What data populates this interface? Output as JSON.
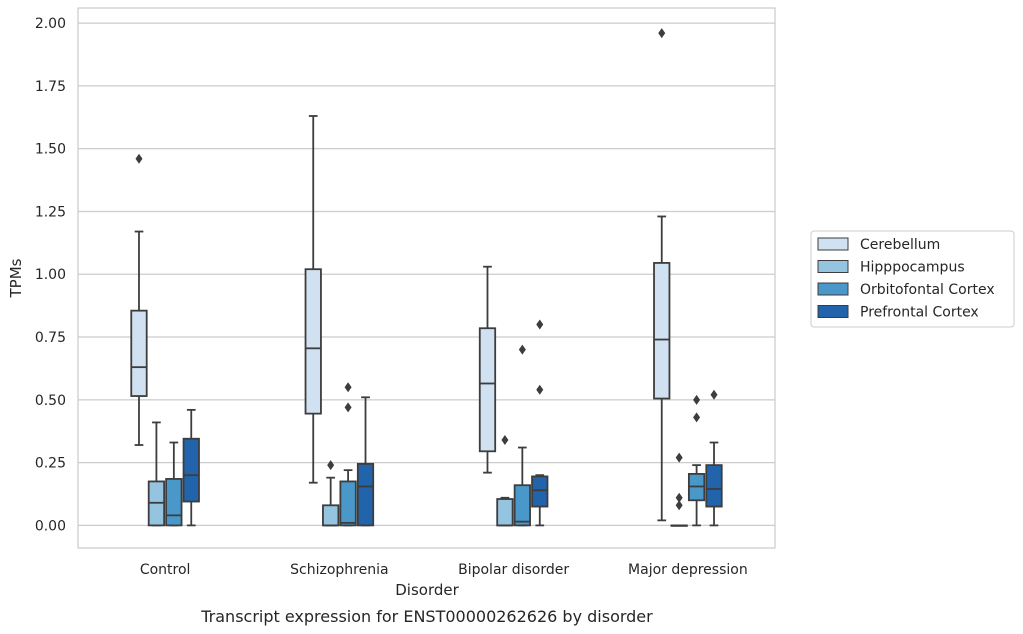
{
  "chart_data": {
    "type": "box",
    "title": "",
    "caption": "Transcript expression for ENST00000262626 by disorder",
    "xlabel": "Disorder",
    "ylabel": "TPMs",
    "ylim": [
      -0.09,
      2.06
    ],
    "yticks": [
      "0.00",
      "0.25",
      "0.50",
      "0.75",
      "1.00",
      "1.25",
      "1.50",
      "1.75",
      "2.00"
    ],
    "ytick_values": [
      0,
      0.25,
      0.5,
      0.75,
      1.0,
      1.25,
      1.5,
      1.75,
      2.0
    ],
    "grid": "horizontal",
    "legend_position": "right",
    "categories": [
      "Control",
      "Schizophrenia",
      "Bipolar disorder",
      "Major depression"
    ],
    "series": [
      {
        "name": "Cerebellum",
        "color": "#d0e1f2",
        "boxes": [
          {
            "whisker_low": 0.32,
            "q1": 0.515,
            "median": 0.63,
            "q3": 0.855,
            "whisker_high": 1.17,
            "outliers": [
              1.46
            ]
          },
          {
            "whisker_low": 0.17,
            "q1": 0.445,
            "median": 0.705,
            "q3": 1.02,
            "whisker_high": 1.63,
            "outliers": []
          },
          {
            "whisker_low": 0.21,
            "q1": 0.295,
            "median": 0.565,
            "q3": 0.785,
            "whisker_high": 1.03,
            "outliers": []
          },
          {
            "whisker_low": 0.02,
            "q1": 0.505,
            "median": 0.74,
            "q3": 1.045,
            "whisker_high": 1.23,
            "outliers": [
              1.96
            ]
          }
        ]
      },
      {
        "name": "Hipppocampus",
        "color": "#94c4df",
        "boxes": [
          {
            "whisker_low": 0.0,
            "q1": 0.0,
            "median": 0.09,
            "q3": 0.175,
            "whisker_high": 0.41,
            "outliers": []
          },
          {
            "whisker_low": 0.0,
            "q1": 0.0,
            "median": 0.0,
            "q3": 0.08,
            "whisker_high": 0.19,
            "outliers": [
              0.24
            ]
          },
          {
            "whisker_low": 0.0,
            "q1": 0.0,
            "median": 0.0,
            "q3": 0.105,
            "whisker_high": 0.11,
            "outliers": [
              0.34
            ]
          },
          {
            "whisker_low": 0.0,
            "q1": 0.0,
            "median": 0.0,
            "q3": 0.0,
            "whisker_high": 0.0,
            "outliers": [
              0.27,
              0.11,
              0.08
            ]
          }
        ]
      },
      {
        "name": "Orbitofontal Cortex",
        "color": "#4a98c9",
        "boxes": [
          {
            "whisker_low": 0.0,
            "q1": 0.0,
            "median": 0.04,
            "q3": 0.185,
            "whisker_high": 0.33,
            "outliers": []
          },
          {
            "whisker_low": 0.0,
            "q1": 0.0,
            "median": 0.01,
            "q3": 0.175,
            "whisker_high": 0.22,
            "outliers": [
              0.55,
              0.47
            ]
          },
          {
            "whisker_low": 0.0,
            "q1": 0.0,
            "median": 0.015,
            "q3": 0.16,
            "whisker_high": 0.31,
            "outliers": [
              0.7
            ]
          },
          {
            "whisker_low": 0.0,
            "q1": 0.1,
            "median": 0.155,
            "q3": 0.205,
            "whisker_high": 0.24,
            "outliers": [
              0.5,
              0.43
            ]
          }
        ]
      },
      {
        "name": "Prefrontal Cortex",
        "color": "#2264ab",
        "boxes": [
          {
            "whisker_low": 0.0,
            "q1": 0.095,
            "median": 0.2,
            "q3": 0.345,
            "whisker_high": 0.46,
            "outliers": []
          },
          {
            "whisker_low": 0.0,
            "q1": 0.0,
            "median": 0.155,
            "q3": 0.245,
            "whisker_high": 0.51,
            "outliers": []
          },
          {
            "whisker_low": 0.0,
            "q1": 0.075,
            "median": 0.14,
            "q3": 0.195,
            "whisker_high": 0.2,
            "outliers": [
              0.8,
              0.54
            ]
          },
          {
            "whisker_low": 0.0,
            "q1": 0.075,
            "median": 0.145,
            "q3": 0.24,
            "whisker_high": 0.33,
            "outliers": [
              0.52
            ]
          }
        ]
      }
    ]
  }
}
